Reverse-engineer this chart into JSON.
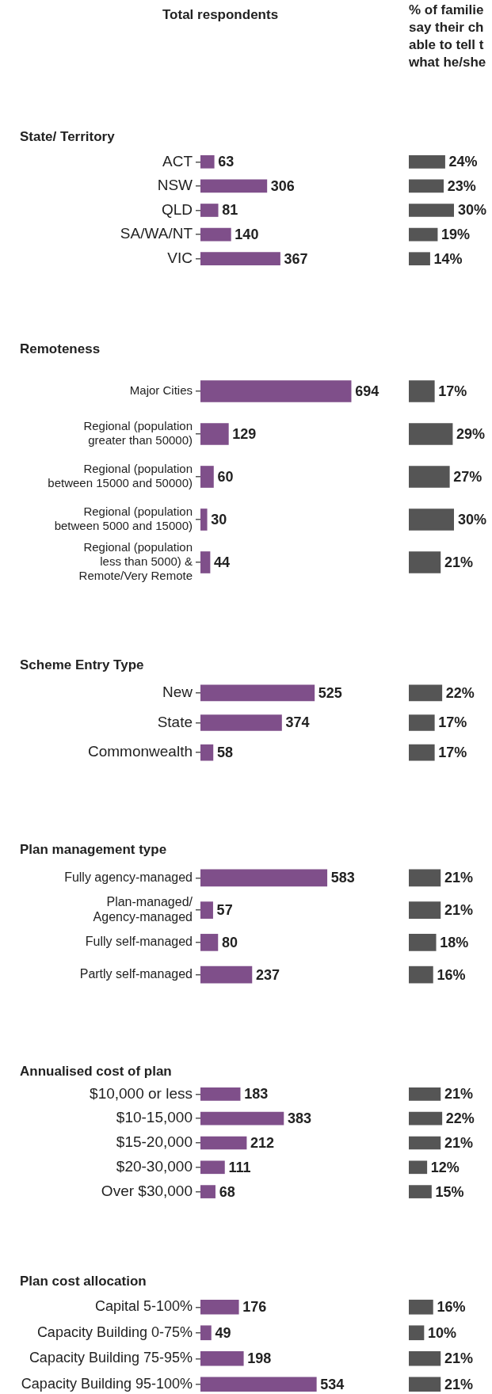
{
  "chart_data": [
    {
      "type": "bar",
      "orientation": "horizontal",
      "title": "State/ Territory",
      "annotations": [
        "Total respondents"
      ],
      "categories": [
        "ACT",
        "NSW",
        "QLD",
        "SA/WA/NT",
        "VIC"
      ],
      "values": [
        63,
        306,
        81,
        140,
        367
      ],
      "color": "#7f4f8a",
      "data_labels": true,
      "tick_labels": "y"
    },
    {
      "type": "bar",
      "orientation": "horizontal",
      "annotations": [
        "% of familie\nsay their ch\nable to tell t\nwhat he/she"
      ],
      "categories": [
        null,
        null,
        null,
        null,
        null
      ],
      "values": [
        24,
        23,
        30,
        19,
        14
      ],
      "value_labels": [
        "24%",
        "23%",
        "30%",
        "19%",
        "14%"
      ],
      "color": "#555555",
      "tick_labels": false
    },
    {
      "type": "bar",
      "orientation": "horizontal",
      "title": "Remoteness",
      "categories": [
        "Major Cities",
        "Regional (population\ngreater than 50000)",
        "Regional (population\nbetween 15000 and 50000)",
        "Regional (population\nbetween 5000 and 15000)",
        "Regional (population\nless than 5000) &\nRemote/Very Remote"
      ],
      "values": [
        694,
        129,
        60,
        30,
        44
      ],
      "color": "#7f4f8a",
      "data_labels": true,
      "tick_labels": "y"
    },
    {
      "type": "bar",
      "orientation": "horizontal",
      "categories": [
        null,
        null,
        null,
        null,
        null
      ],
      "values": [
        17,
        29,
        27,
        30,
        21
      ],
      "value_labels": [
        "17%",
        "29%",
        "27%",
        "30%",
        "21%"
      ],
      "color": "#555555",
      "tick_labels": false
    },
    {
      "type": "bar",
      "orientation": "horizontal",
      "title": "Scheme Entry Type",
      "categories": [
        "New",
        "State",
        "Commonwealth"
      ],
      "values": [
        525,
        374,
        58
      ],
      "color": "#7f4f8a",
      "data_labels": true,
      "tick_labels": "y"
    },
    {
      "type": "bar",
      "orientation": "horizontal",
      "categories": [
        null,
        null,
        null
      ],
      "values": [
        22,
        17,
        17
      ],
      "value_labels": [
        "22%",
        "17%",
        "17%"
      ],
      "color": "#555555",
      "tick_labels": false
    },
    {
      "type": "bar",
      "orientation": "horizontal",
      "title": "Plan management type",
      "categories": [
        "Fully agency-managed",
        "Plan-managed/\nAgency-managed",
        "Fully self-managed",
        "Partly self-managed"
      ],
      "values": [
        583,
        57,
        80,
        237
      ],
      "color": "#7f4f8a",
      "data_labels": true,
      "tick_labels": "y"
    },
    {
      "type": "bar",
      "orientation": "horizontal",
      "categories": [
        null,
        null,
        null,
        null
      ],
      "values": [
        21,
        21,
        18,
        16
      ],
      "value_labels": [
        "21%",
        "21%",
        "18%",
        "16%"
      ],
      "color": "#555555",
      "tick_labels": false
    },
    {
      "type": "bar",
      "orientation": "horizontal",
      "title": "Annualised cost of plan",
      "categories": [
        "$10,000 or less",
        "$10-15,000",
        "$15-20,000",
        "$20-30,000",
        "Over $30,000"
      ],
      "values": [
        183,
        383,
        212,
        111,
        68
      ],
      "color": "#7f4f8a",
      "data_labels": true,
      "tick_labels": "y"
    },
    {
      "type": "bar",
      "orientation": "horizontal",
      "categories": [
        null,
        null,
        null,
        null,
        null
      ],
      "values": [
        21,
        22,
        21,
        12,
        15
      ],
      "value_labels": [
        "21%",
        "22%",
        "21%",
        "12%",
        "15%"
      ],
      "color": "#555555",
      "tick_labels": false
    },
    {
      "type": "bar",
      "orientation": "horizontal",
      "title": "Plan cost allocation",
      "categories": [
        "Capital 5-100%",
        "Capacity Building 0-75%",
        "Capacity Building 75-95%",
        "Capacity Building 95-100%"
      ],
      "values": [
        176,
        49,
        198,
        534
      ],
      "color": "#7f4f8a",
      "data_labels": true,
      "tick_labels": "y"
    },
    {
      "type": "bar",
      "orientation": "horizontal",
      "categories": [
        null,
        null,
        null,
        null
      ],
      "values": [
        16,
        10,
        21,
        21
      ],
      "value_labels": [
        "16%",
        "10%",
        "21%",
        "21%"
      ],
      "color": "#555555",
      "tick_labels": false
    }
  ]
}
